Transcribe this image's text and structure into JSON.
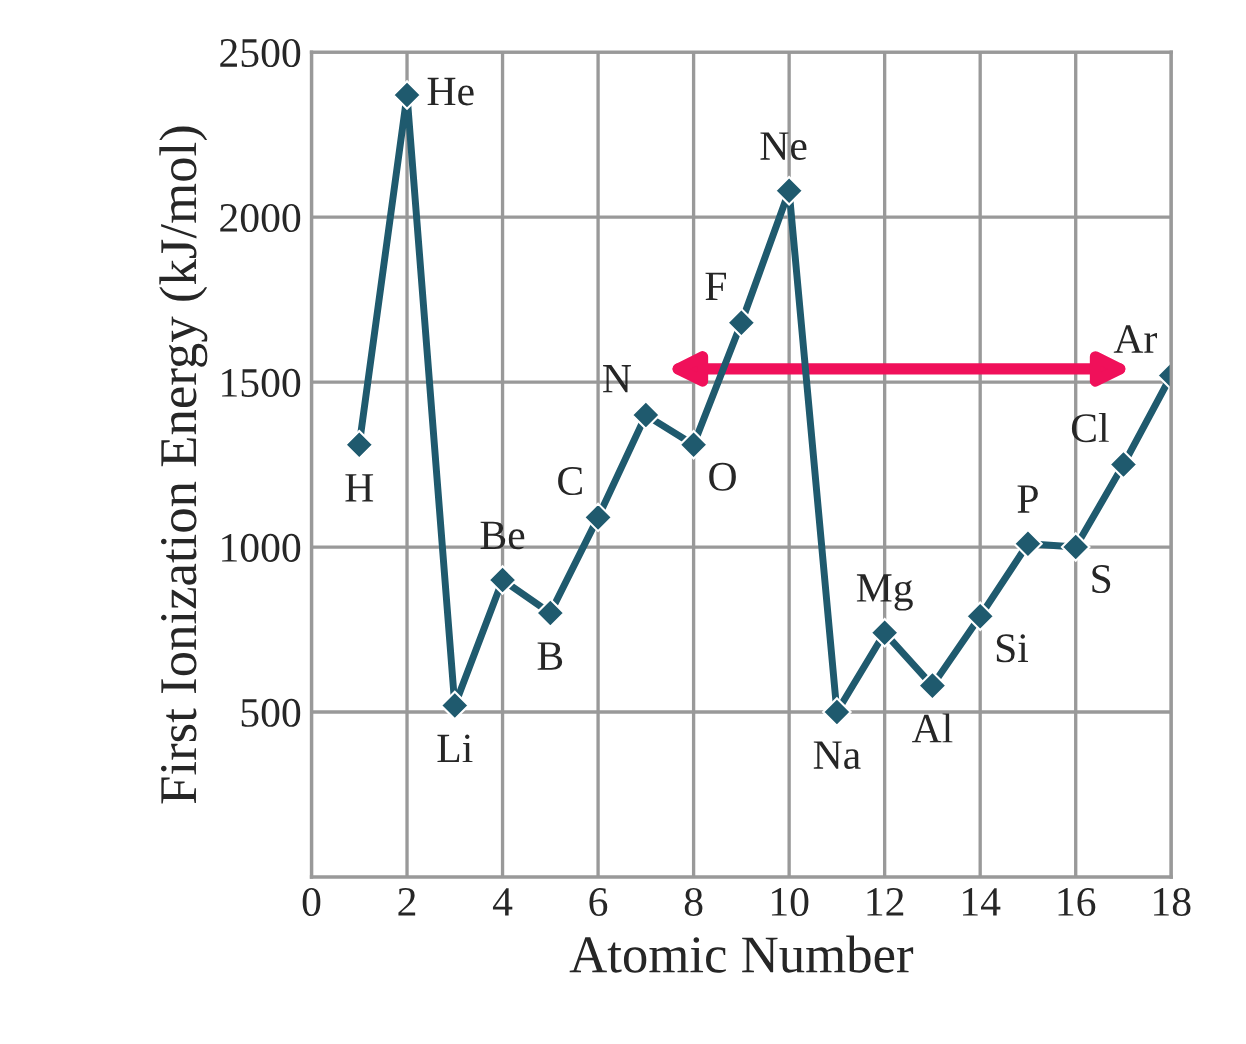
{
  "chart_data": {
    "type": "line",
    "xlabel": "Atomic Number",
    "ylabel": "First Ionization Energy (kJ/mol)",
    "x": [
      1,
      2,
      3,
      4,
      5,
      6,
      7,
      8,
      9,
      10,
      11,
      12,
      13,
      14,
      15,
      16,
      17,
      18
    ],
    "series": [
      {
        "color": "#1f5a6e",
        "values": [
          1310,
          2370,
          520,
          900,
          800,
          1090,
          1400,
          1310,
          1680,
          2080,
          500,
          740,
          580,
          790,
          1010,
          1000,
          1250,
          1520
        ]
      }
    ],
    "xlim": [
      0,
      18
    ],
    "xticks": [
      0,
      2,
      4,
      6,
      8,
      10,
      12,
      14,
      16,
      18
    ],
    "ylim": [
      0,
      2500
    ],
    "yticks": [
      500,
      1000,
      1500,
      2000,
      2500
    ],
    "grid": true,
    "marker": "diamond",
    "line_style": "solid",
    "annotations": [
      {
        "text": "H",
        "x": 1,
        "y": 1310
      },
      {
        "text": "He",
        "x": 2,
        "y": 2370
      },
      {
        "text": "Li",
        "x": 3,
        "y": 520
      },
      {
        "text": "Be",
        "x": 4,
        "y": 900
      },
      {
        "text": "B",
        "x": 5,
        "y": 800
      },
      {
        "text": "C",
        "x": 6,
        "y": 1090
      },
      {
        "text": "N",
        "x": 7,
        "y": 1400
      },
      {
        "text": "O",
        "x": 8,
        "y": 1310
      },
      {
        "text": "F",
        "x": 9,
        "y": 1680
      },
      {
        "text": "Ne",
        "x": 10,
        "y": 2080
      },
      {
        "text": "Na",
        "x": 11,
        "y": 500
      },
      {
        "text": "Mg",
        "x": 12,
        "y": 740
      },
      {
        "text": "Al",
        "x": 13,
        "y": 580
      },
      {
        "text": "Si",
        "x": 14,
        "y": 790
      },
      {
        "text": "P",
        "x": 15,
        "y": 1010
      },
      {
        "text": "S",
        "x": 16,
        "y": 1000
      },
      {
        "text": "Cl",
        "x": 17,
        "y": 1250
      },
      {
        "text": "Ar",
        "x": 18,
        "y": 1520
      }
    ]
  }
}
